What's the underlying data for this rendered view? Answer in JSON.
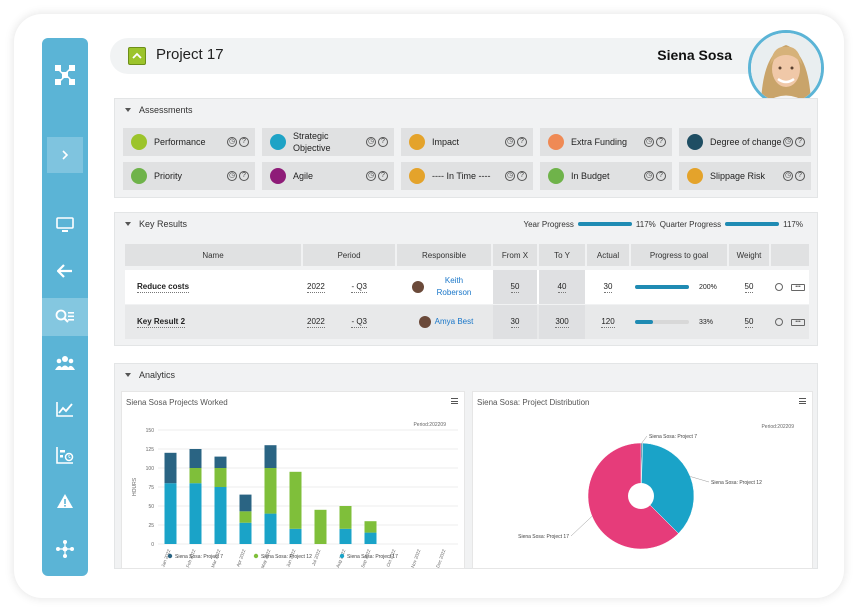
{
  "project": {
    "title": "Project 17"
  },
  "user": {
    "name": "Siena Sosa"
  },
  "colors": {
    "sidebar": "#5bb4d6",
    "accent": "#1f8bb3",
    "series7": "#2a6483",
    "series12": "#7fbf3a",
    "series17": "#1aa3c8",
    "pie17": "#e63c7a"
  },
  "sidebar": {
    "items": [
      "logo-icon",
      "expand-icon",
      "monitor-icon",
      "back-arrow-icon",
      "search-list-icon",
      "team-icon",
      "analytics-icon",
      "gantt-icon",
      "warning-icon",
      "network-icon"
    ]
  },
  "assessments": {
    "title": "Assessments",
    "items": [
      {
        "label": "Performance",
        "color": "#9cc42b"
      },
      {
        "label": "Strategic Objective",
        "color": "#1ea3c6"
      },
      {
        "label": "Impact",
        "color": "#e4a32b"
      },
      {
        "label": "Extra Funding",
        "color": "#ef8a55"
      },
      {
        "label": "Degree of change",
        "color": "#1f4e63"
      },
      {
        "label": "Priority",
        "color": "#6fb34a"
      },
      {
        "label": "Agile",
        "color": "#8e1c78"
      },
      {
        "label": "---- In Time ----",
        "color": "#e4a32b"
      },
      {
        "label": "In Budget",
        "color": "#6fb34a"
      },
      {
        "label": "Slippage Risk",
        "color": "#e4a32b"
      }
    ]
  },
  "key_results": {
    "title": "Key Results",
    "year_progress_label": "Year Progress",
    "year_progress_value": "117%",
    "year_progress_fraction": 1.0,
    "quarter_progress_label": "Quarter Progress",
    "quarter_progress_value": "117%",
    "quarter_progress_fraction": 1.0,
    "columns": [
      "Name",
      "Period",
      "Responsible",
      "From X",
      "To Y",
      "Actual",
      "Progress to goal",
      "Weight"
    ],
    "rows": [
      {
        "name": "Reduce costs",
        "year": "2022",
        "quarter": "- Q3",
        "responsible": "Keith Roberson",
        "from": "50",
        "to": "40",
        "actual": "30",
        "progress": "200%",
        "progress_fraction": 1.0,
        "weight": "50"
      },
      {
        "name": "Key Result 2",
        "year": "2022",
        "quarter": "- Q3",
        "responsible": "Amya Best",
        "from": "30",
        "to": "300",
        "actual": "120",
        "progress": "33%",
        "progress_fraction": 0.33,
        "weight": "50"
      }
    ]
  },
  "analytics": {
    "title": "Analytics",
    "bar_card_title": "Siena Sosa Projects Worked",
    "bar_period": "Period:202209",
    "pie_card_title": "Siena Sosa: Project Distribution",
    "pie_period": "Period:202209"
  },
  "chart_data": [
    {
      "type": "bar",
      "stacked": true,
      "title": "Siena Sosa Projects Worked",
      "ylabel": "HOURS",
      "ylim": [
        0,
        150
      ],
      "yticks": [
        0,
        25,
        50,
        75,
        100,
        125,
        150
      ],
      "categories": [
        "Jan 2022",
        "Feb 2022",
        "Mar 2022",
        "Apr 2022",
        "May 2022",
        "Jun 2022",
        "Jul 2022",
        "Aug 2022",
        "Sep 2022",
        "Oct 2022",
        "Nov 2022",
        "Dec 2022"
      ],
      "series": [
        {
          "name": "Siena Sosa: Project 17",
          "values": [
            80,
            80,
            75,
            28,
            40,
            20,
            0,
            20,
            15,
            0,
            0,
            0
          ]
        },
        {
          "name": "Siena Sosa: Project 12",
          "values": [
            0,
            20,
            25,
            15,
            60,
            75,
            45,
            30,
            15,
            0,
            0,
            0
          ]
        },
        {
          "name": "Siena Sosa: Project 7",
          "values": [
            40,
            25,
            15,
            22,
            30,
            0,
            0,
            0,
            0,
            0,
            0,
            0
          ]
        }
      ],
      "legend": "bottom"
    },
    {
      "type": "pie",
      "title": "Siena Sosa: Project Distribution",
      "slices": [
        {
          "name": "Siena Sosa: Project 7",
          "value": 0.5
        },
        {
          "name": "Siena Sosa: Project 12",
          "value": 37
        },
        {
          "name": "Siena Sosa: Project 17",
          "value": 62.5
        }
      ]
    }
  ]
}
